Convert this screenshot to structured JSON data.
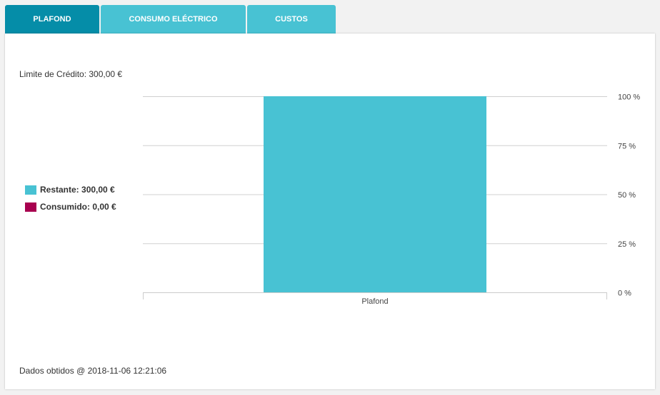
{
  "tabs": [
    {
      "label": "PLAFOND",
      "active": true
    },
    {
      "label": "CONSUMO ELÉCTRICO"
    },
    {
      "label": "CUSTOS"
    }
  ],
  "credit_limit": "Limite de Crédito: 300,00 €",
  "legend": [
    {
      "label": "Restante: 300,00 €",
      "color": "#48c2d3"
    },
    {
      "label": "Consumido: 0,00 €",
      "color": "#a8004f"
    }
  ],
  "footer": "Dados obtidos @ 2018-11-06 12:21:06",
  "chart_data": {
    "type": "bar",
    "stacked": true,
    "categories": [
      "Plafond"
    ],
    "series": [
      {
        "name": "Restante",
        "values": [
          100
        ],
        "color": "#48c2d3"
      },
      {
        "name": "Consumido",
        "values": [
          0
        ],
        "color": "#a8004f"
      }
    ],
    "ylim": [
      0,
      100
    ],
    "yticks": [
      "0 %",
      "25 %",
      "50 %",
      "75 %",
      "100 %"
    ],
    "grid": true,
    "y_axis_side": "right",
    "legend_placement": "left"
  }
}
